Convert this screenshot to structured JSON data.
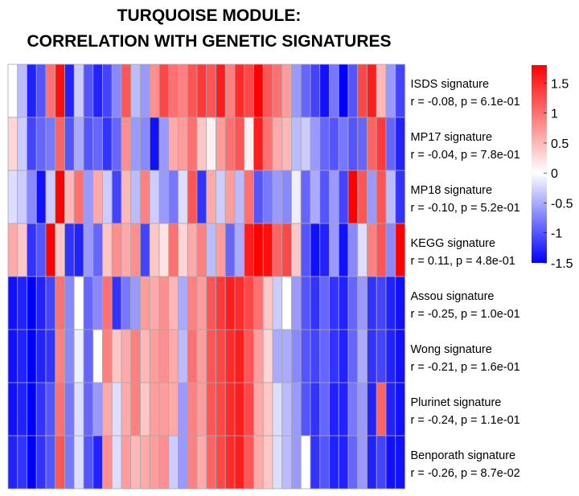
{
  "chart_data": {
    "type": "heatmap",
    "title_lines": [
      "TURQUOISE MODULE:",
      "CORRELATION WITH GENETIC SIGNATURES"
    ],
    "rows": [
      {
        "name": "ISDS signature",
        "stats": "r = -0.08, p = 6.1e-01"
      },
      {
        "name": "MP17 signature",
        "stats": "r = -0.04, p = 7.8e-01"
      },
      {
        "name": "MP18 signature",
        "stats": "r = -0.10, p = 5.2e-01"
      },
      {
        "name": "KEGG signature",
        "stats": "r = 0.11, p = 4.8e-01"
      },
      {
        "name": "Assou signature",
        "stats": "r = -0.25, p = 1.0e-01"
      },
      {
        "name": "Wong signature",
        "stats": "r = -0.21, p = 1.6e-01"
      },
      {
        "name": "Plurinet signature",
        "stats": "r = -0.24, p = 1.1e-01"
      },
      {
        "name": "Benporath signature",
        "stats": "r = -0.26, p = 8.7e-02"
      }
    ],
    "n_columns": 42,
    "values": [
      [
        0.0,
        -0.4,
        -1.3,
        -1.0,
        1.0,
        1.7,
        -1.3,
        -0.3,
        -1.0,
        -1.3,
        -1.1,
        -0.7,
        1.2,
        -0.4,
        -0.6,
        0.8,
        1.3,
        1.0,
        0.9,
        1.2,
        1.4,
        1.2,
        1.6,
        0.9,
        1.5,
        1.3,
        1.8,
        1.2,
        1.0,
        0.7,
        -0.6,
        -0.9,
        -1.1,
        -1.4,
        -0.8,
        -1.5,
        -1.0,
        1.3,
        1.6,
        0.5,
        -0.6,
        -1.1
      ],
      [
        0.3,
        -0.3,
        -1.1,
        -0.9,
        -0.8,
        1.1,
        -1.0,
        -0.5,
        -1.0,
        -0.9,
        -1.2,
        -0.9,
        0.8,
        -0.6,
        -0.7,
        -1.4,
        -0.6,
        0.6,
        0.7,
        1.0,
        0.4,
        0.1,
        0.7,
        1.0,
        1.2,
        0.1,
        1.6,
        1.0,
        0.6,
        0.5,
        -0.4,
        -0.3,
        -0.6,
        -0.9,
        -1.0,
        -0.8,
        -1.0,
        -0.9,
        1.1,
        1.4,
        -0.9,
        -1.3
      ],
      [
        -0.2,
        -0.3,
        -0.7,
        -1.4,
        -0.3,
        1.8,
        0.5,
        1.0,
        -0.6,
        0.6,
        -0.3,
        -1.1,
        0.5,
        -0.4,
        0.9,
        -0.3,
        -0.6,
        -0.8,
        -0.2,
        1.2,
        -1.2,
        0.6,
        -0.3,
        0.7,
        -0.4,
        1.0,
        -1.0,
        -0.8,
        -0.6,
        -0.7,
        -0.1,
        -0.9,
        -0.5,
        -1.0,
        -0.6,
        -1.1,
        1.8,
        1.2,
        -0.6,
        1.2,
        -0.4,
        -1.2
      ],
      [
        0.6,
        0.4,
        -1.2,
        -1.0,
        1.8,
        0.4,
        -1.2,
        -1.3,
        -0.6,
        -0.9,
        0.4,
        0.8,
        0.6,
        0.8,
        -1.1,
        0.4,
        0.2,
        1.0,
        0.3,
        0.6,
        0.9,
        -0.4,
        0.7,
        -0.9,
        -0.5,
        1.6,
        1.8,
        1.7,
        1.1,
        1.3,
        0.4,
        -1.0,
        -1.4,
        -1.3,
        -0.6,
        -1.4,
        -0.7,
        -0.2,
        0.9,
        1.2,
        -0.7,
        1.8
      ],
      [
        -1.4,
        -1.3,
        -1.5,
        -1.3,
        -1.1,
        1.0,
        -0.7,
        0.0,
        -0.9,
        -0.7,
        1.0,
        -1.2,
        -0.8,
        -0.6,
        0.7,
        0.6,
        0.8,
        0.5,
        -0.5,
        0.9,
        0.7,
        1.2,
        1.4,
        1.6,
        1.5,
        1.3,
        1.0,
        0.4,
        -0.3,
        0.0,
        -0.6,
        -1.0,
        -1.2,
        -0.9,
        -1.2,
        -1.3,
        -0.9,
        -0.6,
        -1.2,
        -1.1,
        -1.3,
        -1.4
      ],
      [
        -1.4,
        -1.3,
        -1.5,
        -1.3,
        -1.2,
        0.9,
        -0.7,
        -0.1,
        -0.9,
        0.0,
        0.9,
        0.4,
        0.6,
        0.9,
        0.5,
        0.7,
        0.8,
        0.6,
        -0.4,
        1.0,
        0.7,
        1.2,
        1.3,
        1.5,
        1.6,
        1.2,
        0.7,
        0.3,
        -0.5,
        -0.5,
        -0.7,
        -1.0,
        -1.1,
        -0.9,
        -1.2,
        -1.3,
        -0.9,
        -0.5,
        -1.2,
        -1.1,
        -1.3,
        -1.4
      ],
      [
        -1.4,
        -1.3,
        -1.5,
        -1.2,
        -1.0,
        1.0,
        -0.8,
        -0.2,
        -0.9,
        -0.6,
        0.6,
        -0.2,
        0.6,
        0.9,
        0.4,
        0.7,
        0.7,
        0.6,
        -0.6,
        0.9,
        0.7,
        1.2,
        1.3,
        1.5,
        1.6,
        1.3,
        0.6,
        0.4,
        -0.2,
        -0.4,
        -0.6,
        -1.0,
        -1.2,
        -0.9,
        -1.3,
        -1.3,
        -0.8,
        -0.6,
        -1.3,
        1.1,
        -1.3,
        -1.4
      ],
      [
        -1.3,
        -1.2,
        -1.5,
        -1.2,
        -1.0,
        1.2,
        -0.8,
        -0.2,
        -1.0,
        -1.3,
        0.8,
        -0.2,
        0.7,
        0.5,
        0.6,
        0.7,
        0.8,
        -0.3,
        -0.6,
        0.9,
        0.6,
        1.1,
        1.3,
        1.5,
        1.6,
        1.2,
        0.6,
        0.4,
        -0.2,
        -0.4,
        -0.6,
        0.0,
        -1.2,
        -1.0,
        -1.3,
        -1.3,
        -0.9,
        -0.6,
        -1.3,
        -1.1,
        -1.4,
        -1.4
      ]
    ],
    "color_scale": {
      "low": "#0000ff",
      "mid": "#ffffff",
      "high": "#ff0000",
      "range": [
        -1.5,
        1.8
      ],
      "ticks": [
        1.5,
        1,
        0.5,
        0,
        -0.5,
        -1,
        -1.5
      ],
      "tick_labels": [
        "1.5",
        "1",
        "0.5",
        "0",
        "-0.5",
        "-1",
        "-1.5"
      ]
    },
    "cell_border_color": "#a8a8a8",
    "grid": true,
    "legend_placement": "right"
  }
}
